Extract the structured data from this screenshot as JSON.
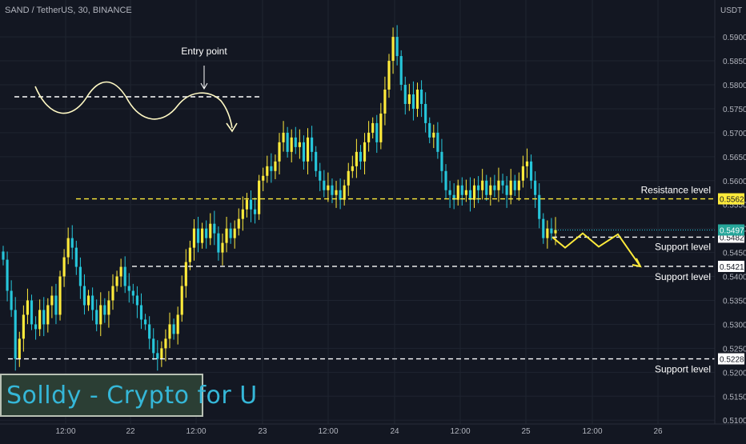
{
  "symbol_line": "SAND / TetherUS, 30, BINANCE",
  "currency": "USDT",
  "watermark": "Solldy - Crypto for U",
  "colors": {
    "background": "#131722",
    "grid": "#1f2430",
    "bull": "#ffeb3b",
    "bear": "#26c6da",
    "axis_text": "#b2b5be",
    "annotation": "#ffffff",
    "level_line": "#ffeb3b",
    "projection": "#ffeb3b"
  },
  "chart_data": {
    "type": "candlestick",
    "title": "SAND / TetherUS, 30, BINANCE",
    "y_axis_ticks": [
      0.51,
      0.515,
      0.52,
      0.525,
      0.53,
      0.535,
      0.54,
      0.545,
      0.55,
      0.555,
      0.56,
      0.565,
      0.57,
      0.575,
      0.58,
      0.585,
      0.59
    ],
    "y_axis_tick_labels": [
      "0.5100",
      "0.5150",
      "0.5200",
      "0.5250",
      "0.5300",
      "0.5350",
      "0.5400",
      "0.5450",
      "0.5500",
      "0.5550",
      "0.5600",
      "0.5650",
      "0.5700",
      "0.5750",
      "0.5800",
      "0.5850",
      "0.5900"
    ],
    "x_axis_tick_labels": [
      "12:00",
      "22",
      "12:00",
      "23",
      "12:00",
      "24",
      "12:00",
      "25",
      "12:00",
      "26"
    ],
    "ylim": [
      0.5092,
      0.5977
    ],
    "close_prices": [
      0.5435,
      0.537,
      0.533,
      0.5228,
      0.527,
      0.532,
      0.535,
      0.53,
      0.529,
      0.533,
      0.53,
      0.534,
      0.536,
      0.532,
      0.54,
      0.544,
      0.548,
      0.546,
      0.542,
      0.538,
      0.534,
      0.536,
      0.533,
      0.53,
      0.534,
      0.532,
      0.535,
      0.538,
      0.54,
      0.542,
      0.538,
      0.537,
      0.536,
      0.534,
      0.531,
      0.53,
      0.527,
      0.524,
      0.5228,
      0.525,
      0.527,
      0.53,
      0.528,
      0.532,
      0.538,
      0.543,
      0.546,
      0.55,
      0.547,
      0.55,
      0.548,
      0.551,
      0.549,
      0.545,
      0.547,
      0.55,
      0.548,
      0.55,
      0.552,
      0.554,
      0.556,
      0.554,
      0.553,
      0.56,
      0.561,
      0.563,
      0.562,
      0.564,
      0.568,
      0.57,
      0.566,
      0.569,
      0.567,
      0.568,
      0.564,
      0.569,
      0.566,
      0.562,
      0.56,
      0.558,
      0.559,
      0.557,
      0.558,
      0.556,
      0.559,
      0.562,
      0.563,
      0.566,
      0.564,
      0.568,
      0.57,
      0.572,
      0.568,
      0.574,
      0.579,
      0.585,
      0.59,
      0.586,
      0.58,
      0.576,
      0.578,
      0.575,
      0.579,
      0.576,
      0.572,
      0.569,
      0.57,
      0.566,
      0.562,
      0.558,
      0.557,
      0.556,
      0.559,
      0.557,
      0.558,
      0.556,
      0.559,
      0.558,
      0.56,
      0.557,
      0.559,
      0.558,
      0.56,
      0.559,
      0.557,
      0.56,
      0.558,
      0.56,
      0.563,
      0.564,
      0.56,
      0.557,
      0.552,
      0.548,
      0.55,
      0.549,
      0.5497
    ],
    "annotations": {
      "entry_point": "Entry point",
      "levels": [
        {
          "label": "Resistance level",
          "price": 0.5562,
          "price_label": "0.5562"
        },
        {
          "label": "Support level",
          "price": 0.5482,
          "price_label": "0.5482"
        },
        {
          "label": "Support level",
          "price": 0.5421,
          "price_label": "0.5421"
        },
        {
          "label": "Support level",
          "price": 0.5228,
          "price_label": "0.5228"
        }
      ],
      "last_price": {
        "price": 0.5497,
        "price_label": "0.5497"
      },
      "projection_path": [
        0.5482,
        0.546,
        0.549,
        0.5462,
        0.5488,
        0.5421
      ]
    }
  }
}
